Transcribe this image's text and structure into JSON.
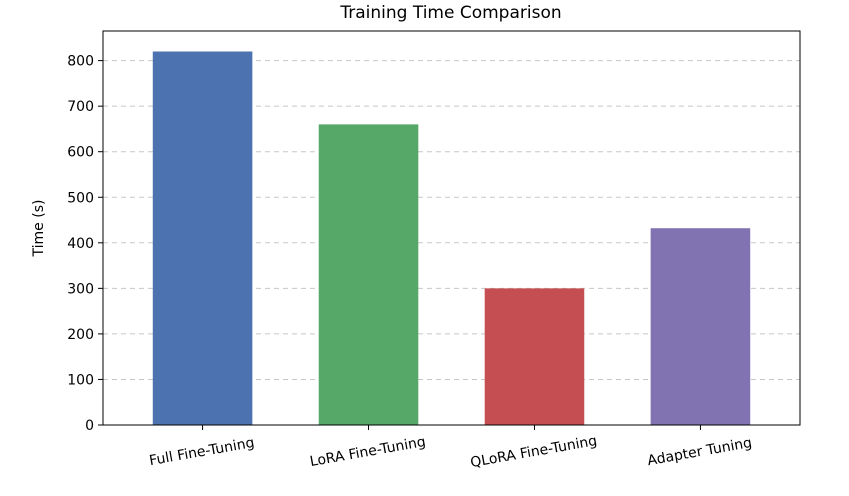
{
  "chart_data": {
    "type": "bar",
    "title": "Training Time Comparison",
    "xlabel": "",
    "ylabel": "Time (s)",
    "categories": [
      "Full Fine-Tuning",
      "LoRA Fine-Tuning",
      "QLoRA Fine-Tuning",
      "Adapter Tuning"
    ],
    "values": [
      820,
      660,
      300,
      432
    ],
    "colors": [
      "#4c72b0",
      "#55a868",
      "#c44e52",
      "#8172b2"
    ],
    "ylim": [
      0,
      865
    ],
    "yticks": [
      0,
      100,
      200,
      300,
      400,
      500,
      600,
      700,
      800
    ],
    "grid": "y-dashed",
    "legend": "none"
  }
}
